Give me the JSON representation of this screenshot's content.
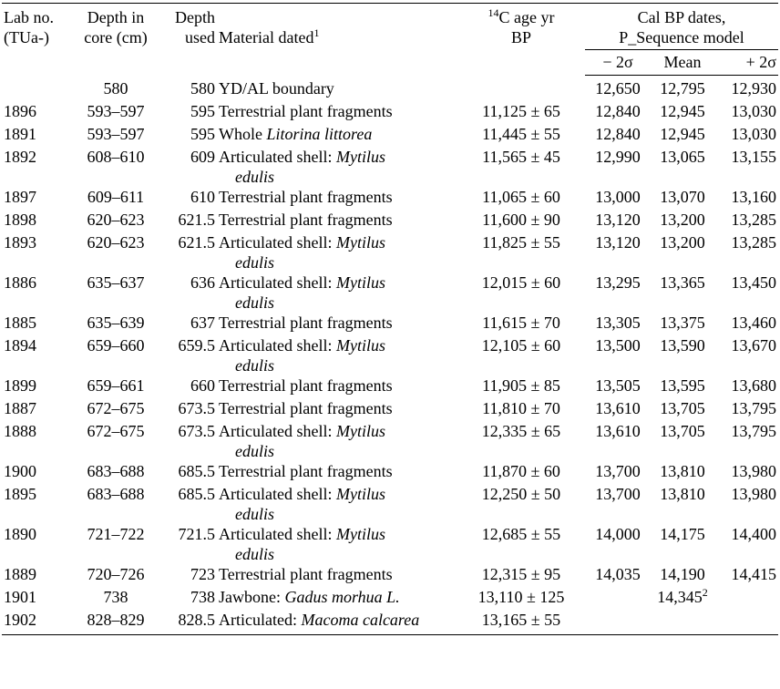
{
  "headers": {
    "lab_line1": "Lab no.",
    "lab_line2": "(TUa-)",
    "depth_line1": "Depth in",
    "depth_line2": "core (cm)",
    "used_line1": "Depth",
    "used_line2": "used",
    "material": "Material dated",
    "material_sup": "1",
    "age_sup": "14",
    "age_line1": "C age yr",
    "age_line2": "BP",
    "cal_line1": "Cal BP dates,",
    "cal_line2": "P_Sequence model",
    "minus2": "− 2σ",
    "mean": "Mean",
    "plus2": "+ 2σ"
  },
  "rows": [
    {
      "lab": "",
      "depth": "580",
      "used": "580",
      "mat_plain": "YD/AL boundary",
      "mat_italic": "",
      "mat_line2": "",
      "age": "",
      "m2": "12,650",
      "mean": "12,795",
      "mean_sup": "",
      "p2": "12,930"
    },
    {
      "lab": "1896",
      "depth": "593–597",
      "used": "595",
      "mat_plain": "Terrestrial plant fragments",
      "mat_italic": "",
      "mat_line2": "",
      "age": "11,125 ± 65",
      "m2": "12,840",
      "mean": "12,945",
      "mean_sup": "",
      "p2": "13,030"
    },
    {
      "lab": "1891",
      "depth": "593–597",
      "used": "595",
      "mat_plain": "Whole ",
      "mat_italic": "Litorina littorea",
      "mat_line2": "",
      "age": "11,445 ± 55",
      "m2": "12,840",
      "mean": "12,945",
      "mean_sup": "",
      "p2": "13,030"
    },
    {
      "lab": "1892",
      "depth": "608–610",
      "used": "609",
      "mat_plain": "Articulated shell: ",
      "mat_italic": "Mytilus",
      "mat_line2": "edulis",
      "age": "11,565 ± 45",
      "m2": "12,990",
      "mean": "13,065",
      "mean_sup": "",
      "p2": "13,155"
    },
    {
      "lab": "1897",
      "depth": "609–611",
      "used": "610",
      "mat_plain": "Terrestrial plant fragments",
      "mat_italic": "",
      "mat_line2": "",
      "age": "11,065 ± 60",
      "m2": "13,000",
      "mean": "13,070",
      "mean_sup": "",
      "p2": "13,160"
    },
    {
      "lab": "1898",
      "depth": "620–623",
      "used": "621.5",
      "mat_plain": "Terrestrial plant fragments",
      "mat_italic": "",
      "mat_line2": "",
      "age": "11,600 ± 90",
      "m2": "13,120",
      "mean": "13,200",
      "mean_sup": "",
      "p2": "13,285"
    },
    {
      "lab": "1893",
      "depth": "620–623",
      "used": "621.5",
      "mat_plain": "Articulated shell: ",
      "mat_italic": "Mytilus",
      "mat_line2": "edulis",
      "age": "11,825 ± 55",
      "m2": "13,120",
      "mean": "13,200",
      "mean_sup": "",
      "p2": "13,285"
    },
    {
      "lab": "1886",
      "depth": "635–637",
      "used": "636",
      "mat_plain": "Articulated shell: ",
      "mat_italic": "Mytilus",
      "mat_line2": "edulis",
      "age": "12,015 ± 60",
      "m2": "13,295",
      "mean": "13,365",
      "mean_sup": "",
      "p2": "13,450"
    },
    {
      "lab": "1885",
      "depth": "635–639",
      "used": "637",
      "mat_plain": "Terrestrial plant fragments",
      "mat_italic": "",
      "mat_line2": "",
      "age": "11,615 ± 70",
      "m2": "13,305",
      "mean": "13,375",
      "mean_sup": "",
      "p2": "13,460"
    },
    {
      "lab": "1894",
      "depth": "659–660",
      "used": "659.5",
      "mat_plain": "Articulated shell: ",
      "mat_italic": "Mytilus",
      "mat_line2": "edulis",
      "age": "12,105 ± 60",
      "m2": "13,500",
      "mean": "13,590",
      "mean_sup": "",
      "p2": "13,670"
    },
    {
      "lab": "1899",
      "depth": "659–661",
      "used": "660",
      "mat_plain": "Terrestrial plant fragments",
      "mat_italic": "",
      "mat_line2": "",
      "age": "11,905 ± 85",
      "m2": "13,505",
      "mean": "13,595",
      "mean_sup": "",
      "p2": "13,680"
    },
    {
      "lab": "1887",
      "depth": "672–675",
      "used": "673.5",
      "mat_plain": "Terrestrial plant fragments",
      "mat_italic": "",
      "mat_line2": "",
      "age": "11,810 ± 70",
      "m2": "13,610",
      "mean": "13,705",
      "mean_sup": "",
      "p2": "13,795"
    },
    {
      "lab": "1888",
      "depth": "672–675",
      "used": "673.5",
      "mat_plain": "Articulated shell: ",
      "mat_italic": "Mytilus",
      "mat_line2": "edulis",
      "age": "12,335 ± 65",
      "m2": "13,610",
      "mean": "13,705",
      "mean_sup": "",
      "p2": "13,795"
    },
    {
      "lab": "1900",
      "depth": "683–688",
      "used": "685.5",
      "mat_plain": "Terrestrial plant fragments",
      "mat_italic": "",
      "mat_line2": "",
      "age": "11,870 ± 60",
      "m2": "13,700",
      "mean": "13,810",
      "mean_sup": "",
      "p2": "13,980"
    },
    {
      "lab": "1895",
      "depth": "683–688",
      "used": "685.5",
      "mat_plain": "Articulated shell: ",
      "mat_italic": "Mytilus",
      "mat_line2": "edulis",
      "age": "12,250 ± 50",
      "m2": "13,700",
      "mean": "13,810",
      "mean_sup": "",
      "p2": "13,980"
    },
    {
      "lab": "1890",
      "depth": "721–722",
      "used": "721.5",
      "mat_plain": "Articulated shell: ",
      "mat_italic": "Mytilus",
      "mat_line2": "edulis",
      "age": "12,685 ± 55",
      "m2": "14,000",
      "mean": "14,175",
      "mean_sup": "",
      "p2": "14,400"
    },
    {
      "lab": "1889",
      "depth": "720–726",
      "used": "723",
      "mat_plain": "Terrestrial plant fragments",
      "mat_italic": "",
      "mat_line2": "",
      "age": "12,315 ± 95",
      "m2": "14,035",
      "mean": "14,190",
      "mean_sup": "",
      "p2": "14,415"
    },
    {
      "lab": "1901",
      "depth": "738",
      "used": "738",
      "mat_plain": "Jawbone: ",
      "mat_italic": "Gadus morhua L.",
      "mat_line2": "",
      "age": "13,110 ± 125",
      "m2": "",
      "mean": "14,345",
      "mean_sup": "2",
      "p2": ""
    },
    {
      "lab": "1902",
      "depth": "828–829",
      "used": "828.5",
      "mat_plain": "Articulated: ",
      "mat_italic": "Macoma calcarea",
      "mat_line2": "",
      "age": "13,165 ± 55",
      "m2": "",
      "mean": "",
      "mean_sup": "",
      "p2": ""
    }
  ]
}
